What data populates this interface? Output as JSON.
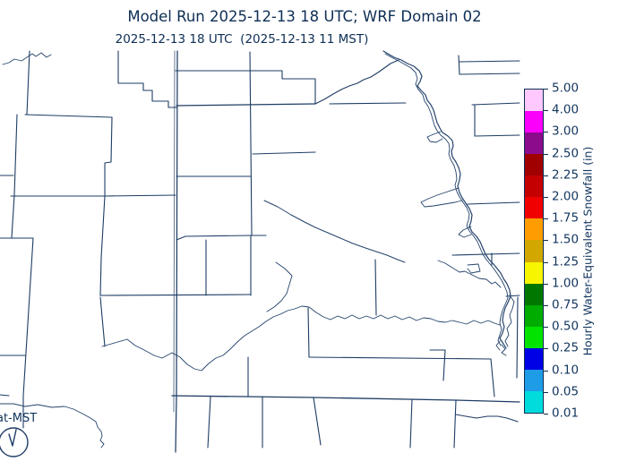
{
  "header": {
    "title": "Model Run 2025-12-13 18 UTC; WRF Domain 02",
    "subtitle": "2025-12-13 18 UTC  (2025-12-13 11 MST)"
  },
  "map": {
    "timezone_note": "at-MST",
    "line_color": "#1e3c64",
    "river_color": "#24436b",
    "features": "county boundaries and braided river channels, no snowfall shading visible"
  },
  "colorbar": {
    "label": "Hourly Water-Equivalent Snowfall (in)",
    "tick_labels": [
      "5.00",
      "4.00",
      "3.00",
      "2.50",
      "2.25",
      "2.00",
      "1.75",
      "1.50",
      "1.25",
      "1.00",
      "0.75",
      "0.50",
      "0.25",
      "0.10",
      "0.05",
      "0.01"
    ],
    "segment_colors_top_to_bottom": [
      "#FFC8FF",
      "#FB00FB",
      "#8C0A8C",
      "#A00000",
      "#C40000",
      "#F00000",
      "#FF9C00",
      "#D2A800",
      "#F8F500",
      "#007800",
      "#00AC00",
      "#00E400",
      "#0000E6",
      "#1E9CE6",
      "#00DCDC"
    ],
    "segment_ranges_top_to_bottom": [
      "4.00–5.00",
      "3.00–4.00",
      "2.50–3.00",
      "2.25–2.50",
      "2.00–2.25",
      "1.75–2.00",
      "1.50–1.75",
      "1.25–1.50",
      "1.00–1.25",
      "0.75–1.00",
      "0.50–0.75",
      "0.25–0.50",
      "0.10–0.25",
      "0.05–0.10",
      "0.01–0.05"
    ],
    "border_color": "#0d2e54"
  },
  "colors": {
    "text": "#0d2e54",
    "background": "#ffffff"
  }
}
